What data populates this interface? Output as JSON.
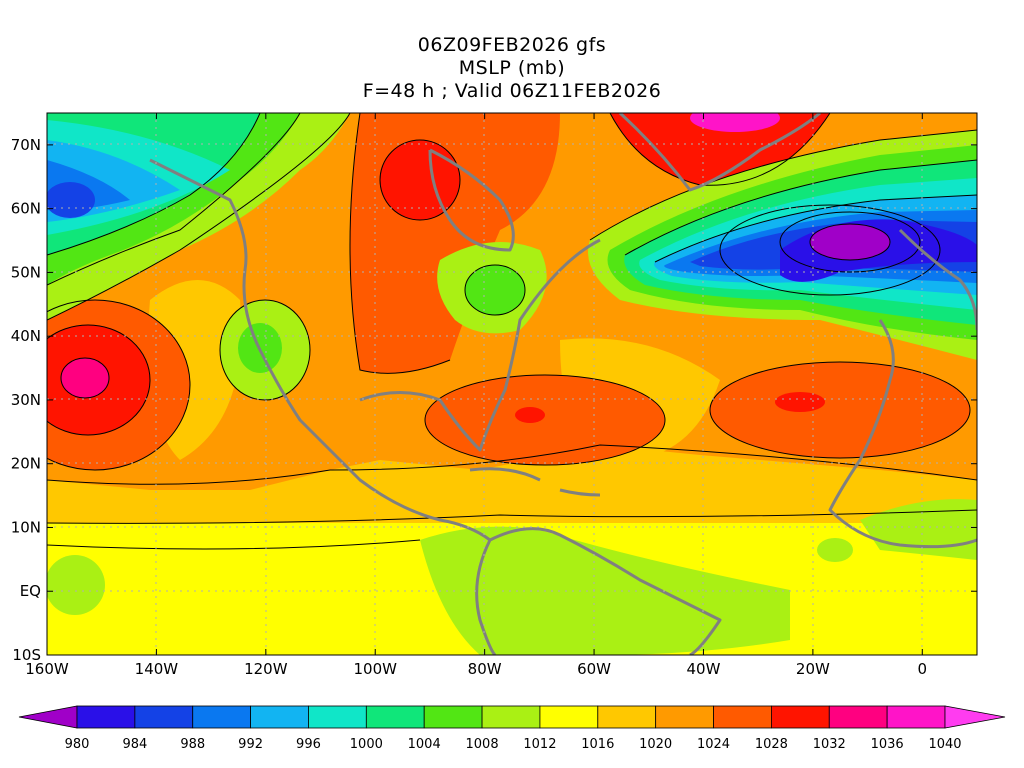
{
  "header": {
    "line1": "06Z09FEB2026 gfs",
    "line2": "MSLP (mb)",
    "line3": "F=48 h ; Valid 06Z11FEB2026"
  },
  "axes": {
    "lon_labels": [
      "160W",
      "140W",
      "120W",
      "100W",
      "80W",
      "60W",
      "40W",
      "20W",
      "0"
    ],
    "lat_labels": [
      "70N",
      "60N",
      "50N",
      "40N",
      "30N",
      "20N",
      "10N",
      "EQ",
      "10S"
    ],
    "lon_values": [
      -160,
      -140,
      -120,
      -100,
      -80,
      -60,
      -40,
      -20,
      0
    ],
    "lat_values": [
      70,
      60,
      50,
      40,
      30,
      20,
      10,
      0,
      -10
    ],
    "lon_range": [
      -160,
      10
    ],
    "lat_range": [
      -10,
      75
    ]
  },
  "colorbar": {
    "levels": [
      "980",
      "984",
      "988",
      "992",
      "996",
      "1000",
      "1004",
      "1008",
      "1012",
      "1016",
      "1020",
      "1024",
      "1028",
      "1032",
      "1036",
      "1040"
    ],
    "colors": [
      "#a000c8",
      "#2a10e8",
      "#1442e6",
      "#0a78f0",
      "#12b4f2",
      "#10e6c8",
      "#10e67a",
      "#52e614",
      "#aaf014",
      "#ffff00",
      "#ffc800",
      "#ff9a00",
      "#ff5a00",
      "#ff1400",
      "#ff0080",
      "#ff14c8",
      "#ff3cf0"
    ]
  },
  "features": [
    {
      "name": "pacific-high",
      "center": "1036"
    },
    {
      "name": "north-atlantic-low",
      "center": "984"
    },
    {
      "name": "azores-high",
      "center": "1028"
    },
    {
      "name": "bermuda-high",
      "center": "1028"
    },
    {
      "name": "greenland-high",
      "center": "1036"
    },
    {
      "name": "canadian-high",
      "center": "1032"
    }
  ]
}
